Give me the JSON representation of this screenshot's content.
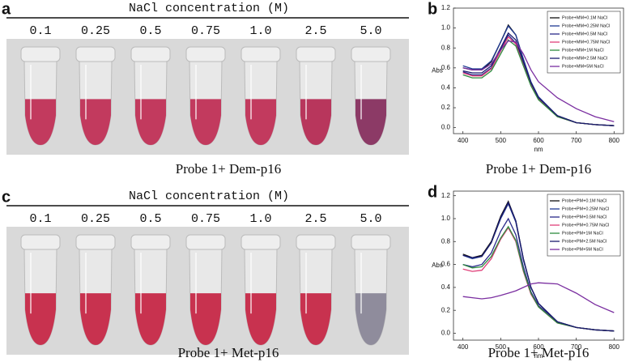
{
  "photos": [
    {
      "label": "a",
      "header": "NaCl concentration (M)",
      "concentrations": [
        "0.1",
        "0.25",
        "0.5",
        "0.75",
        "1.0",
        "2.5",
        "5.0"
      ],
      "tube_colors": [
        "#c23a5e",
        "#c23a5e",
        "#c23a5e",
        "#c23a5e",
        "#c23a5e",
        "#b8365c",
        "#8c3a66"
      ],
      "caption": "Probe 1+ Dem-p16"
    },
    {
      "label": "c",
      "header": "NaCl concentration (M)",
      "concentrations": [
        "0.1",
        "0.25",
        "0.5",
        "0.75",
        "1.0",
        "2.5",
        "5.0"
      ],
      "tube_colors": [
        "#c8324f",
        "#c8324f",
        "#c8324f",
        "#c8324f",
        "#c8324f",
        "#c8324f",
        "#8f8c9c"
      ],
      "caption": "Probe 1+ Met-p16"
    }
  ],
  "chart_data": [
    {
      "type": "line",
      "label": "b",
      "caption": "Probe 1+ Dem-p16",
      "x_label": "nm",
      "y_label": "Abs",
      "x": [
        400,
        425,
        450,
        475,
        500,
        520,
        540,
        560,
        580,
        600,
        650,
        700,
        750,
        800
      ],
      "xlim": [
        375,
        825
      ],
      "xticks": [
        400,
        500,
        600,
        700,
        800
      ],
      "ylim": [
        -0.06,
        1.2
      ],
      "yticks": [
        {
          "value": 0,
          "label": "0.0"
        },
        0.2,
        0.4,
        0.6,
        0.8,
        {
          "value": 1,
          "label": "1.0"
        },
        1.2
      ],
      "legend": "upper right",
      "series": [
        {
          "name": "Probe+MM+0.1M NaCl",
          "color": "#111111",
          "values": [
            0.6,
            0.58,
            0.58,
            0.66,
            0.86,
            1.03,
            0.93,
            0.68,
            0.45,
            0.3,
            0.12,
            0.05,
            0.03,
            0.02
          ]
        },
        {
          "name": "Probe+MM+0.25M NaCl",
          "color": "#1f3a93",
          "values": [
            0.62,
            0.59,
            0.59,
            0.67,
            0.86,
            1.02,
            0.93,
            0.69,
            0.46,
            0.31,
            0.12,
            0.05,
            0.03,
            0.02
          ]
        },
        {
          "name": "Probe+MM+0.5M NaCl",
          "color": "#2a2a8a",
          "values": [
            0.56,
            0.53,
            0.53,
            0.6,
            0.78,
            0.93,
            0.85,
            0.64,
            0.43,
            0.29,
            0.11,
            0.05,
            0.03,
            0.02
          ]
        },
        {
          "name": "Probe+MM+0.75M NaCl",
          "color": "#e0407a",
          "values": [
            0.55,
            0.52,
            0.52,
            0.59,
            0.77,
            0.91,
            0.84,
            0.63,
            0.43,
            0.29,
            0.11,
            0.05,
            0.03,
            0.02
          ]
        },
        {
          "name": "Probe+MM+1M NaCl",
          "color": "#2e8b3e",
          "values": [
            0.53,
            0.5,
            0.5,
            0.57,
            0.74,
            0.88,
            0.82,
            0.62,
            0.42,
            0.28,
            0.11,
            0.05,
            0.03,
            0.02
          ]
        },
        {
          "name": "Probe+MM+2.5M NaCl",
          "color": "#1a1a6e",
          "values": [
            0.57,
            0.55,
            0.55,
            0.62,
            0.8,
            0.95,
            0.88,
            0.66,
            0.45,
            0.3,
            0.12,
            0.05,
            0.03,
            0.02
          ]
        },
        {
          "name": "Probe+MM+5M NaCl",
          "color": "#7a2ea0",
          "values": [
            0.6,
            0.58,
            0.58,
            0.64,
            0.78,
            0.87,
            0.86,
            0.74,
            0.58,
            0.46,
            0.3,
            0.19,
            0.11,
            0.06
          ]
        }
      ]
    },
    {
      "type": "line",
      "label": "d",
      "caption": "Probe 1+ Met-p16",
      "x_label": "nm",
      "y_label": "Abs",
      "x": [
        400,
        425,
        450,
        475,
        500,
        520,
        540,
        560,
        580,
        600,
        650,
        700,
        750,
        800
      ],
      "xlim": [
        375,
        825
      ],
      "xticks": [
        400,
        500,
        600,
        700,
        800
      ],
      "ylim": [
        -0.06,
        1.24
      ],
      "yticks": [
        {
          "value": 0,
          "label": "0.0"
        },
        0.2,
        0.4,
        0.6,
        0.8,
        {
          "value": 1,
          "label": "1.0"
        },
        1.2
      ],
      "legend": "upper right",
      "series": [
        {
          "name": "Probe+PM+0.1M NaCl",
          "color": "#111111",
          "values": [
            0.69,
            0.66,
            0.68,
            0.8,
            1.02,
            1.15,
            0.98,
            0.65,
            0.4,
            0.26,
            0.1,
            0.05,
            0.03,
            0.02
          ]
        },
        {
          "name": "Probe+PM+0.25M NaCl",
          "color": "#1f3a93",
          "values": [
            0.68,
            0.65,
            0.67,
            0.79,
            1.0,
            1.13,
            0.97,
            0.64,
            0.4,
            0.26,
            0.1,
            0.05,
            0.03,
            0.02
          ]
        },
        {
          "name": "Probe+PM+0.5M NaCl",
          "color": "#2a2a8a",
          "values": [
            0.6,
            0.58,
            0.6,
            0.7,
            0.89,
            1.0,
            0.86,
            0.58,
            0.36,
            0.24,
            0.1,
            0.05,
            0.03,
            0.02
          ]
        },
        {
          "name": "Probe+PM+0.75M NaCl",
          "color": "#e0407a",
          "values": [
            0.56,
            0.54,
            0.55,
            0.65,
            0.82,
            0.92,
            0.8,
            0.54,
            0.34,
            0.23,
            0.09,
            0.05,
            0.03,
            0.02
          ]
        },
        {
          "name": "Probe+PM+1M NaCl",
          "color": "#2e8b3e",
          "values": [
            0.6,
            0.57,
            0.58,
            0.67,
            0.83,
            0.93,
            0.81,
            0.55,
            0.35,
            0.23,
            0.09,
            0.05,
            0.03,
            0.02
          ]
        },
        {
          "name": "Probe+PM+2.5M NaCl",
          "color": "#1a1a6e",
          "values": [
            0.68,
            0.66,
            0.67,
            0.79,
            1.01,
            1.14,
            0.98,
            0.65,
            0.4,
            0.26,
            0.1,
            0.05,
            0.03,
            0.02
          ]
        },
        {
          "name": "Probe+PM+5M NaCl",
          "color": "#7a2ea0",
          "values": [
            0.32,
            0.31,
            0.3,
            0.31,
            0.33,
            0.35,
            0.37,
            0.4,
            0.43,
            0.44,
            0.43,
            0.35,
            0.25,
            0.18
          ]
        }
      ]
    }
  ]
}
